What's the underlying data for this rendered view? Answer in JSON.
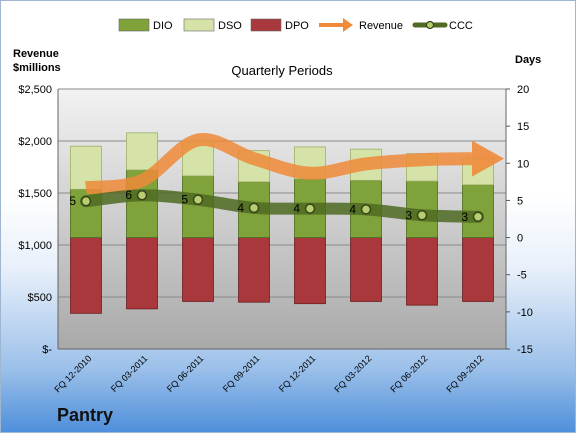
{
  "company": "Pantry",
  "chart_data": {
    "type": "bar",
    "title": "Quarterly Periods",
    "y_left_label": [
      "Revenue",
      "$millions"
    ],
    "y_right_label": "Days",
    "categories": [
      "FQ 12-2010",
      "FQ 03-2011",
      "FQ 06-2011",
      "FQ 09-2011",
      "FQ 12-2011",
      "FQ 03-2012",
      "FQ 06-2012",
      "FQ 09-2012"
    ],
    "y_left_ticks": [
      "$-",
      "$500",
      "$1,000",
      "$1,500",
      "$2,000",
      "$2,500"
    ],
    "y_left_lim": [
      0,
      2500
    ],
    "y_right_ticks": [
      "-15",
      "-10",
      "-5",
      "0",
      "5",
      "10",
      "15",
      "20"
    ],
    "y_right_lim": [
      -15,
      20
    ],
    "legend": [
      "DIO",
      "DSO",
      "DPO",
      "Revenue",
      "CCC"
    ],
    "legend_position": "top",
    "grid": true,
    "series": [
      {
        "name": "DIO",
        "axis": "days",
        "color": "#7fa33a",
        "values": [
          6.5,
          9.1,
          8.3,
          7.5,
          7.9,
          7.7,
          7.6,
          7.1
        ]
      },
      {
        "name": "DSO",
        "axis": "days",
        "color": "#d5e3a8",
        "values": [
          5.8,
          5.0,
          4.7,
          4.2,
          4.3,
          4.2,
          3.7,
          3.6
        ]
      },
      {
        "name": "DPO",
        "axis": "days",
        "color": "#a8383b",
        "values": [
          -10.2,
          -9.6,
          -8.6,
          -8.7,
          -8.9,
          -8.6,
          -9.1,
          -8.6
        ]
      },
      {
        "name": "Revenue",
        "axis": "revenue",
        "color": "#ef8a3a",
        "values": [
          1550,
          1620,
          2010,
          1830,
          1690,
          1780,
          1820,
          1830
        ]
      },
      {
        "name": "CCC",
        "axis": "days",
        "color": "#4f6a22",
        "values": [
          4.9,
          5.7,
          5.1,
          4.0,
          3.9,
          3.8,
          3.0,
          2.8
        ],
        "labels": [
          "5",
          "6",
          "5",
          "4",
          "4",
          "4",
          "3",
          "3"
        ]
      }
    ]
  }
}
